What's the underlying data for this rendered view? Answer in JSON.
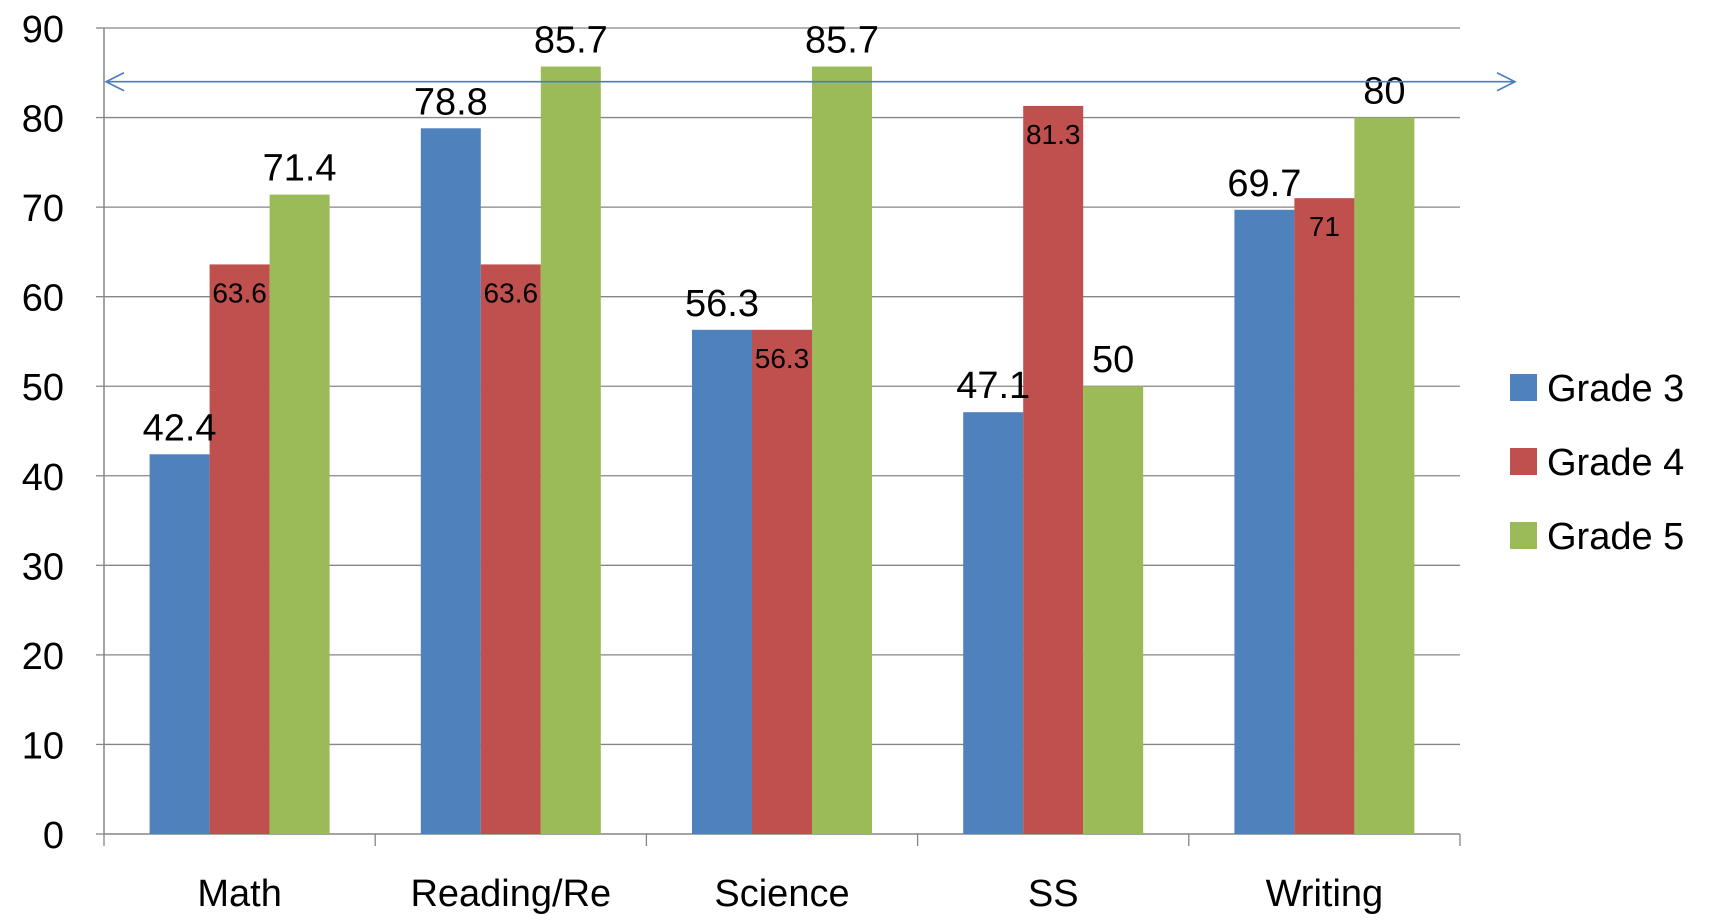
{
  "chart_data": {
    "type": "bar",
    "title": "",
    "xlabel": "",
    "ylabel": "",
    "categories": [
      "Math",
      "Reading/Re",
      "Science",
      "SS",
      "Writing"
    ],
    "ylim": [
      0,
      90
    ],
    "y_ticks": [
      0,
      10,
      20,
      30,
      40,
      50,
      60,
      70,
      80,
      90
    ],
    "grid": true,
    "legend_position": "right",
    "series": [
      {
        "name": "Grade 3",
        "color": "#4F81BD",
        "values": [
          42.4,
          78.8,
          56.3,
          47.1,
          69.7
        ],
        "labels": [
          "42.4",
          "78.8",
          "56.3",
          "47.1",
          "69.7"
        ]
      },
      {
        "name": "Grade 4",
        "color": "#C0504D",
        "values": [
          63.6,
          63.6,
          56.3,
          81.3,
          71
        ],
        "labels": [
          "63.6",
          "63.6",
          "56.3",
          "81.3",
          "71"
        ]
      },
      {
        "name": "Grade 5",
        "color": "#9BBB59",
        "values": [
          71.4,
          85.7,
          85.7,
          50,
          80
        ],
        "labels": [
          "71.4",
          "85.7",
          "85.7",
          "50",
          "80"
        ]
      }
    ],
    "annotations": [
      {
        "type": "double-arrow-line",
        "y": 84,
        "color": "#4A7EBB"
      }
    ]
  }
}
